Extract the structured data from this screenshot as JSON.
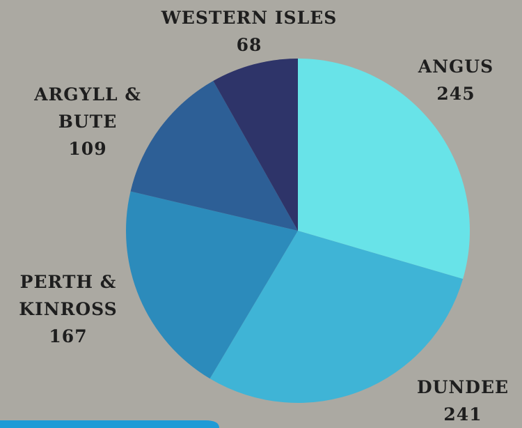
{
  "chart_data": {
    "type": "pie",
    "categories": [
      "ANGUS",
      "DUNDEE",
      "PERTH & KINROSS",
      "ARGYLL & BUTE",
      "WESTERN ISLES"
    ],
    "values": [
      245,
      241,
      167,
      109,
      68
    ],
    "colors": [
      "#68e3e8",
      "#3fb4d6",
      "#2c8bbb",
      "#2d5f96",
      "#2e3469"
    ]
  }
}
